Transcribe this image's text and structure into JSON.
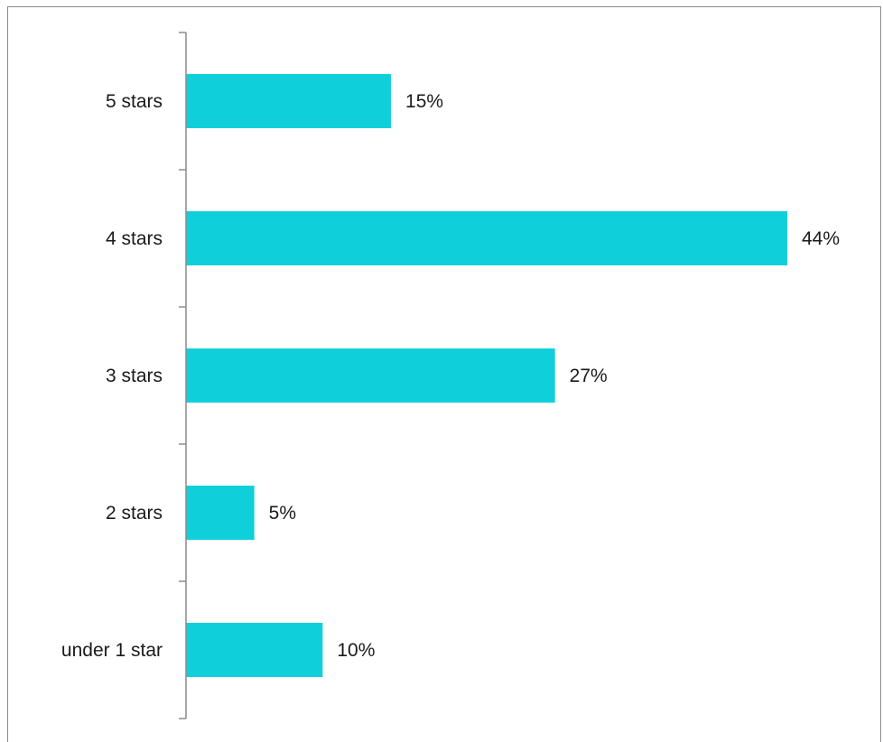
{
  "chart_data": {
    "type": "bar",
    "orientation": "horizontal",
    "title": "",
    "xlabel": "",
    "ylabel": "",
    "categories": [
      "5 stars",
      "4 stars",
      "3 stars",
      "2 stars",
      "under 1 star"
    ],
    "values": [
      15,
      44,
      27,
      5,
      10
    ],
    "data_labels": [
      "15%",
      "44%",
      "27%",
      "5%",
      "10%"
    ],
    "value_unit": "%",
    "xlim": [
      0,
      48
    ],
    "grid": false,
    "legend": "none",
    "bar_color": "#0fd0da",
    "axis_color": "#8c8c8c",
    "text_color": "#1a1a1a"
  }
}
